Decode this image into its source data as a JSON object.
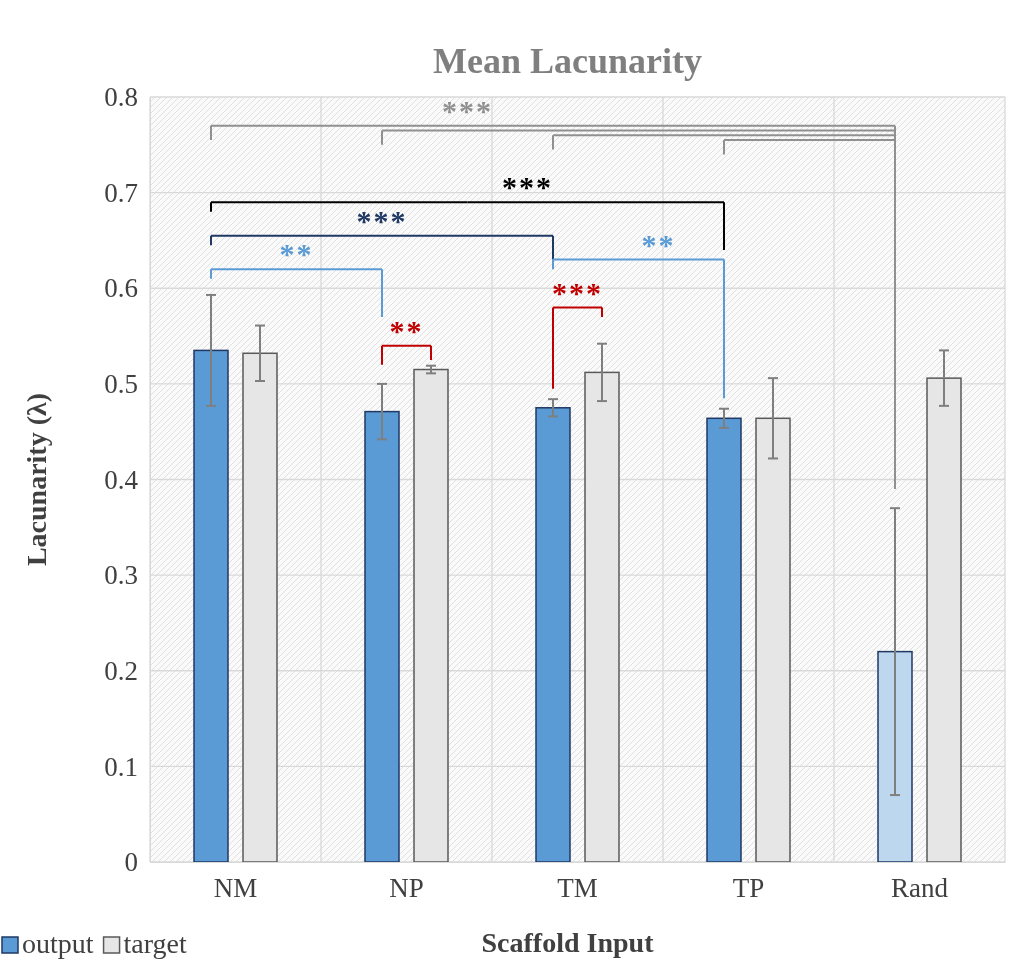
{
  "chart_data": {
    "type": "bar",
    "title": "Mean Lacunarity",
    "xlabel": "Scaffold Input",
    "ylabel": "Lacunarity (λ)",
    "categories": [
      "NM",
      "NP",
      "TM",
      "TP",
      "Rand"
    ],
    "series": [
      {
        "name": "output",
        "color": "#5b9bd5",
        "colors": [
          "#5b9bd5",
          "#5b9bd5",
          "#5b9bd5",
          "#5b9bd5",
          "#bdd7ee"
        ],
        "values": [
          0.535,
          0.471,
          0.475,
          0.464,
          0.22
        ],
        "errors": [
          0.058,
          0.029,
          0.009,
          0.01,
          0.15
        ]
      },
      {
        "name": "target",
        "color": "#e7e6e6",
        "values": [
          0.532,
          0.515,
          0.512,
          0.464,
          0.506
        ],
        "errors": [
          0.029,
          0.004,
          0.03,
          0.042,
          0.029
        ]
      }
    ],
    "ylim": [
      0,
      0.8
    ],
    "yticks": [
      0,
      0.1,
      0.2,
      0.3,
      0.4,
      0.5,
      0.6,
      0.7,
      0.8
    ],
    "grid": true,
    "legend": "bottom left",
    "annotations": [
      "***",
      "***",
      "***",
      "**",
      "**",
      "***",
      "**"
    ]
  }
}
